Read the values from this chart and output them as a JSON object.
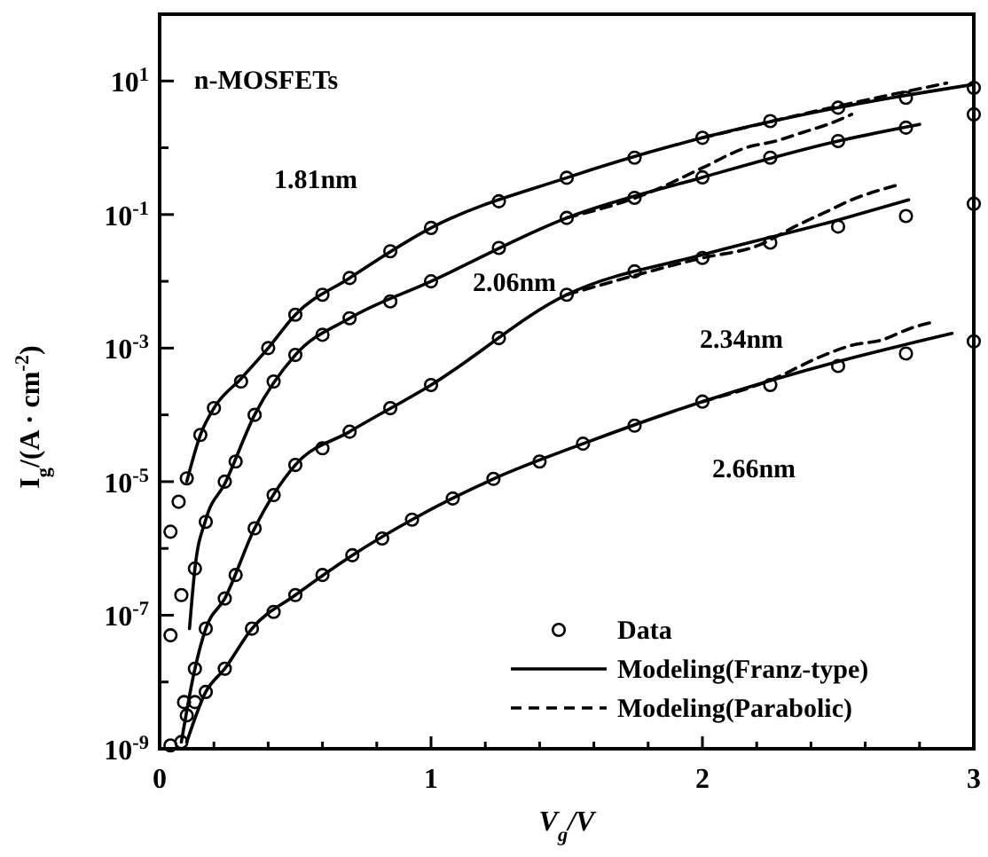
{
  "chart_data": {
    "type": "line",
    "xlabel": "V$_{g}$/V",
    "ylabel": "I$_{g}$/(A · cm$^{-2}$)",
    "log": "y",
    "xlim": [
      0,
      3
    ],
    "ylim": [
      1e-09,
      100
    ],
    "xticks": [
      0,
      {
        "value": 0.2,
        "label": null
      },
      {
        "value": 0.4,
        "label": null
      },
      {
        "value": 0.6,
        "label": null
      },
      {
        "value": 0.8,
        "label": null
      },
      1,
      {
        "value": 1.2,
        "label": null
      },
      {
        "value": 1.4,
        "label": null
      },
      {
        "value": 1.6,
        "label": null
      },
      {
        "value": 1.8,
        "label": null
      },
      2,
      {
        "value": 2.2,
        "label": null
      },
      {
        "value": 2.4,
        "label": null
      },
      {
        "value": 2.6,
        "label": null
      },
      {
        "value": 2.8,
        "label": null
      },
      3
    ],
    "yticks": [
      {
        "value": 1e-09,
        "label": "10$^{-9}$"
      },
      {
        "value": 1e-08,
        "label": null
      },
      {
        "value": 1e-07,
        "label": "10$^{-7}$"
      },
      {
        "value": 1e-06,
        "label": null
      },
      {
        "value": 1e-05,
        "label": "10$^{-5}$"
      },
      {
        "value": 0.0001,
        "label": null
      },
      {
        "value": 0.001,
        "label": "10$^{-3}$"
      },
      {
        "value": 0.01,
        "label": null
      },
      {
        "value": 0.1,
        "label": "10$^{-1}$"
      },
      {
        "value": 1,
        "label": null
      },
      {
        "value": 10,
        "label": "10$^{1}$"
      }
    ],
    "legend": "bottom right",
    "grid": false,
    "annotations": [
      "n-MOSFETs",
      "1.81nm",
      "2.06nm",
      "2.34nm",
      "2.66nm"
    ],
    "series": [
      {
        "name": "Data",
        "type": "scatter",
        "marker": "circle",
        "color": "#000000",
        "x": [
          0.04,
          0.07,
          0.1,
          0.15,
          0.2,
          0.3,
          0.4,
          0.5,
          0.6,
          0.7,
          0.85,
          1.0,
          1.25,
          1.5,
          1.75,
          2.0,
          2.25,
          2.5,
          2.75,
          3.0
        ],
        "values": [
          1.78e-06,
          5e-06,
          1.12e-05,
          5e-05,
          0.000126,
          0.000316,
          0.001,
          0.00316,
          0.0063,
          0.0112,
          0.0282,
          0.063,
          0.158,
          0.355,
          0.71,
          1.41,
          2.51,
          3.98,
          5.6,
          7.9
        ]
      },
      {
        "type": "scatter",
        "marker": "circle",
        "color": "#000000",
        "x": [
          0.04,
          0.08,
          0.13,
          0.17,
          0.24,
          0.28,
          0.35,
          0.42,
          0.5,
          0.6,
          0.7,
          0.85,
          1.0,
          1.25,
          1.5,
          1.75,
          2.0,
          2.25,
          2.5,
          2.75,
          3.0
        ],
        "values": [
          5e-08,
          2e-07,
          5e-07,
          2.5e-06,
          1e-05,
          2e-05,
          0.0001,
          0.000316,
          0.00079,
          0.00158,
          0.0028,
          0.005,
          0.01,
          0.0316,
          0.089,
          0.178,
          0.36,
          0.71,
          1.26,
          2.0,
          3.16
        ]
      },
      {
        "type": "scatter",
        "marker": "circle",
        "color": "#000000",
        "x": [
          0.08,
          0.09,
          0.13,
          0.17,
          0.24,
          0.28,
          0.35,
          0.42,
          0.5,
          0.6,
          0.7,
          0.85,
          1.0,
          1.25,
          1.5,
          1.75,
          2.0,
          2.25,
          2.5,
          2.75,
          3.0
        ],
        "values": [
          1.26e-09,
          5e-09,
          1.58e-08,
          6.3e-08,
          1.78e-07,
          4e-07,
          2e-06,
          6.3e-06,
          1.78e-05,
          3.16e-05,
          5.6e-05,
          0.000126,
          0.00028,
          0.00141,
          0.0063,
          0.0141,
          0.0224,
          0.038,
          0.066,
          0.095,
          0.145
        ]
      },
      {
        "type": "scatter",
        "marker": "circle",
        "color": "#000000",
        "x": [
          0.04,
          0.1,
          0.13,
          0.17,
          0.24,
          0.34,
          0.42,
          0.5,
          0.6,
          0.71,
          0.82,
          0.93,
          1.08,
          1.23,
          1.4,
          1.56,
          1.75,
          2.0,
          2.25,
          2.5,
          2.75,
          3.0
        ],
        "values": [
          1.12e-09,
          3.16e-09,
          5e-09,
          7.1e-09,
          1.58e-08,
          6.3e-08,
          1.12e-07,
          2e-07,
          4e-07,
          7.9e-07,
          1.41e-06,
          2.7e-06,
          5.6e-06,
          1.1e-05,
          2e-05,
          3.7e-05,
          6.9e-05,
          0.000158,
          0.00028,
          0.00054,
          0.00083,
          0.00126
        ]
      },
      {
        "name": "Modeling(Franz-type)",
        "type": "line",
        "line_style": "solid",
        "color": "#000000",
        "x": [
          0.1,
          0.15,
          0.2,
          0.3,
          0.4,
          0.5,
          0.7,
          1.0,
          1.5,
          2.0,
          2.5,
          3.0
        ],
        "values": [
          1e-05,
          5e-05,
          0.000126,
          0.00035,
          0.001,
          0.00316,
          0.0112,
          0.063,
          0.355,
          1.41,
          4.0,
          8.9
        ]
      },
      {
        "type": "line",
        "line_style": "solid",
        "color": "#000000",
        "x": [
          0.11,
          0.13,
          0.17,
          0.24,
          0.35,
          0.5,
          0.7,
          1.0,
          1.5,
          2.0,
          2.5,
          2.8
        ],
        "values": [
          6.3e-08,
          5e-07,
          2.7e-06,
          9.3e-06,
          0.0001,
          0.00079,
          0.0028,
          0.01,
          0.089,
          0.36,
          1.26,
          2.24
        ]
      },
      {
        "type": "line",
        "line_style": "solid",
        "color": "#000000",
        "x": [
          0.08,
          0.13,
          0.17,
          0.24,
          0.35,
          0.5,
          0.7,
          1.0,
          1.5,
          2.0,
          2.5,
          2.76
        ],
        "values": [
          1.26e-09,
          1.58e-08,
          6.3e-08,
          1.78e-07,
          2e-06,
          1.78e-05,
          5.6e-05,
          0.00028,
          0.0063,
          0.025,
          0.083,
          0.166
        ]
      },
      {
        "type": "line",
        "line_style": "solid",
        "color": "#000000",
        "x": [
          0.1,
          0.17,
          0.24,
          0.34,
          0.5,
          0.71,
          0.93,
          1.23,
          1.56,
          2.0,
          2.5,
          2.92
        ],
        "values": [
          1.26e-09,
          7.1e-09,
          1.58e-08,
          6.3e-08,
          2e-07,
          7.9e-07,
          2.7e-06,
          1.1e-05,
          3.7e-05,
          0.000158,
          0.00063,
          0.00166
        ]
      },
      {
        "name": "Modeling(Parabolic)",
        "type": "line",
        "line_style": "dashed",
        "color": "#000000",
        "x": [
          2.0,
          2.5,
          2.9
        ],
        "values": [
          1.41,
          4.2,
          9.3
        ]
      },
      {
        "type": "line",
        "line_style": "dashed",
        "color": "#000000",
        "x": [
          1.5,
          1.8,
          2.0,
          2.16,
          2.27,
          2.37,
          2.47,
          2.55
        ],
        "values": [
          0.089,
          0.21,
          0.5,
          1.0,
          1.26,
          1.7,
          2.3,
          3.16
        ]
      },
      {
        "type": "line",
        "line_style": "dashed",
        "color": "#000000",
        "x": [
          1.5,
          2.0,
          2.21,
          2.34,
          2.45,
          2.55,
          2.71
        ],
        "values": [
          0.0063,
          0.0224,
          0.035,
          0.066,
          0.107,
          0.166,
          0.27
        ]
      },
      {
        "type": "line",
        "line_style": "dashed",
        "color": "#000000",
        "x": [
          2.0,
          2.25,
          2.45,
          2.55,
          2.66,
          2.77,
          2.86
        ],
        "values": [
          0.000158,
          0.00033,
          0.00079,
          0.0011,
          0.00132,
          0.002,
          0.0025
        ]
      }
    ]
  }
}
